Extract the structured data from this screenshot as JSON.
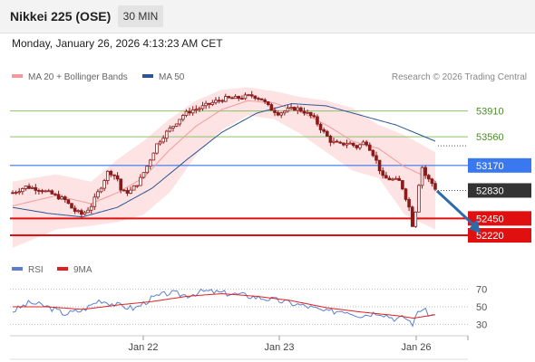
{
  "header": {
    "title": "Nikkei 225 (OSE)",
    "timeframe": "30 MIN",
    "datetime": "Monday, January 26, 2026 4:13:23 AM CET"
  },
  "legend": {
    "ma20_label": "MA 20 + Bollinger Bands",
    "ma50_label": "MA 50",
    "credit": "Research © 2026 Trading Central",
    "rsi_label": "RSI",
    "nine_ma_label": "9MA"
  },
  "colors": {
    "ma20": "#f29a9a",
    "ma50": "#2b5797",
    "bollinger_fill": "#fde3e3",
    "candle": "#8b1a1a",
    "resistance_green": "#8dc26b",
    "level_blue": "#3a78f0",
    "support_red": "#e01010",
    "current_box": "#333333",
    "arrow": "#2e6aa8",
    "rsi": "#5b7fd0",
    "rsi_ma": "#e02020"
  },
  "chart_data": [
    {
      "type": "candlestick",
      "title": "Nikkei 225 (OSE) 30 MIN",
      "x_ticks": [
        "Jan 22",
        "Jan 23",
        "Jan 26"
      ],
      "ylim": [
        51950,
        54250
      ],
      "price_path": [
        {
          "t": 0,
          "p": 52800
        },
        {
          "t": 3,
          "p": 52880
        },
        {
          "t": 6,
          "p": 52850
        },
        {
          "t": 9,
          "p": 52780
        },
        {
          "t": 12,
          "p": 52700
        },
        {
          "t": 14,
          "p": 52560
        },
        {
          "t": 16,
          "p": 52500
        },
        {
          "t": 18,
          "p": 52620
        },
        {
          "t": 20,
          "p": 52850
        },
        {
          "t": 22,
          "p": 53100
        },
        {
          "t": 24,
          "p": 53000
        },
        {
          "t": 25,
          "p": 52800
        },
        {
          "t": 27,
          "p": 52820
        },
        {
          "t": 29,
          "p": 52950
        },
        {
          "t": 31,
          "p": 53180
        },
        {
          "t": 33,
          "p": 53450
        },
        {
          "t": 35,
          "p": 53600
        },
        {
          "t": 37,
          "p": 53720
        },
        {
          "t": 39,
          "p": 53850
        },
        {
          "t": 41,
          "p": 53920
        },
        {
          "t": 43,
          "p": 53950
        },
        {
          "t": 45,
          "p": 54000
        },
        {
          "t": 47,
          "p": 54050
        },
        {
          "t": 49,
          "p": 54080
        },
        {
          "t": 51,
          "p": 54080
        },
        {
          "t": 53,
          "p": 54100
        },
        {
          "t": 55,
          "p": 54120
        },
        {
          "t": 57,
          "p": 54080
        },
        {
          "t": 59,
          "p": 53950
        },
        {
          "t": 61,
          "p": 53880
        },
        {
          "t": 63,
          "p": 53920
        },
        {
          "t": 65,
          "p": 53950
        },
        {
          "t": 67,
          "p": 53900
        },
        {
          "t": 69,
          "p": 53820
        },
        {
          "t": 71,
          "p": 53650
        },
        {
          "t": 73,
          "p": 53500
        },
        {
          "t": 75,
          "p": 53450
        },
        {
          "t": 77,
          "p": 53480
        },
        {
          "t": 79,
          "p": 53420
        },
        {
          "t": 81,
          "p": 53500
        },
        {
          "t": 83,
          "p": 53300
        },
        {
          "t": 85,
          "p": 53000
        },
        {
          "t": 87,
          "p": 52980
        },
        {
          "t": 89,
          "p": 52950
        },
        {
          "t": 91,
          "p": 52600
        },
        {
          "t": 92,
          "p": 52280
        },
        {
          "t": 93,
          "p": 52850
        },
        {
          "t": 94,
          "p": 53150
        },
        {
          "t": 95,
          "p": 53000
        },
        {
          "t": 96,
          "p": 52950
        },
        {
          "t": 97,
          "p": 52860
        }
      ],
      "ma20": [
        {
          "t": 0,
          "p": 52620
        },
        {
          "t": 10,
          "p": 52760
        },
        {
          "t": 18,
          "p": 52650
        },
        {
          "t": 24,
          "p": 52800
        },
        {
          "t": 30,
          "p": 53000
        },
        {
          "t": 36,
          "p": 53380
        },
        {
          "t": 42,
          "p": 53700
        },
        {
          "t": 48,
          "p": 53930
        },
        {
          "t": 54,
          "p": 54050
        },
        {
          "t": 60,
          "p": 54020
        },
        {
          "t": 66,
          "p": 53900
        },
        {
          "t": 72,
          "p": 53720
        },
        {
          "t": 78,
          "p": 53500
        },
        {
          "t": 84,
          "p": 53400
        },
        {
          "t": 90,
          "p": 53150
        },
        {
          "t": 97,
          "p": 52960
        }
      ],
      "bb_upper": [
        {
          "t": 0,
          "p": 52950
        },
        {
          "t": 10,
          "p": 53050
        },
        {
          "t": 18,
          "p": 52950
        },
        {
          "t": 24,
          "p": 53250
        },
        {
          "t": 30,
          "p": 53500
        },
        {
          "t": 36,
          "p": 53800
        },
        {
          "t": 42,
          "p": 54050
        },
        {
          "t": 48,
          "p": 54200
        },
        {
          "t": 54,
          "p": 54230
        },
        {
          "t": 60,
          "p": 54180
        },
        {
          "t": 66,
          "p": 54100
        },
        {
          "t": 72,
          "p": 54050
        },
        {
          "t": 78,
          "p": 53950
        },
        {
          "t": 84,
          "p": 53720
        },
        {
          "t": 90,
          "p": 53580
        },
        {
          "t": 97,
          "p": 53350
        }
      ],
      "bb_lower": [
        {
          "t": 0,
          "p": 52050
        },
        {
          "t": 10,
          "p": 52300
        },
        {
          "t": 18,
          "p": 52350
        },
        {
          "t": 24,
          "p": 52400
        },
        {
          "t": 30,
          "p": 52500
        },
        {
          "t": 36,
          "p": 52800
        },
        {
          "t": 42,
          "p": 53300
        },
        {
          "t": 48,
          "p": 53650
        },
        {
          "t": 54,
          "p": 53850
        },
        {
          "t": 60,
          "p": 53800
        },
        {
          "t": 66,
          "p": 53600
        },
        {
          "t": 72,
          "p": 53350
        },
        {
          "t": 78,
          "p": 53100
        },
        {
          "t": 84,
          "p": 53000
        },
        {
          "t": 90,
          "p": 52500
        },
        {
          "t": 97,
          "p": 52300
        }
      ],
      "ma50": [
        {
          "t": 0,
          "p": 52600
        },
        {
          "t": 8,
          "p": 52520
        },
        {
          "t": 16,
          "p": 52470
        },
        {
          "t": 24,
          "p": 52600
        },
        {
          "t": 32,
          "p": 52860
        },
        {
          "t": 40,
          "p": 53250
        },
        {
          "t": 48,
          "p": 53620
        },
        {
          "t": 56,
          "p": 53880
        },
        {
          "t": 64,
          "p": 54010
        },
        {
          "t": 72,
          "p": 53980
        },
        {
          "t": 80,
          "p": 53850
        },
        {
          "t": 88,
          "p": 53720
        },
        {
          "t": 97,
          "p": 53500
        }
      ],
      "levels": [
        {
          "value": 53910,
          "label": "53910",
          "kind": "resistance"
        },
        {
          "value": 53560,
          "label": "53560",
          "kind": "resistance"
        },
        {
          "value": 53170,
          "label": "53170",
          "kind": "pivot"
        },
        {
          "value": 52830,
          "label": "52830",
          "kind": "current"
        },
        {
          "value": 52450,
          "label": "52450",
          "kind": "support"
        },
        {
          "value": 52220,
          "label": "52220",
          "kind": "support"
        }
      ],
      "forecast_arrow": {
        "from_t": 97,
        "from_p": 52860,
        "to_t": 107,
        "to_p": 52220
      }
    },
    {
      "type": "line",
      "title": "RSI",
      "ylim": [
        20,
        80
      ],
      "y_ticks": [
        70,
        50,
        30
      ],
      "series": [
        {
          "name": "RSI",
          "points": [
            {
              "t": 0,
              "v": 45
            },
            {
              "t": 4,
              "v": 55
            },
            {
              "t": 8,
              "v": 50
            },
            {
              "t": 12,
              "v": 42
            },
            {
              "t": 16,
              "v": 46
            },
            {
              "t": 20,
              "v": 58
            },
            {
              "t": 24,
              "v": 52
            },
            {
              "t": 28,
              "v": 48
            },
            {
              "t": 32,
              "v": 60
            },
            {
              "t": 36,
              "v": 66
            },
            {
              "t": 40,
              "v": 63
            },
            {
              "t": 44,
              "v": 68
            },
            {
              "t": 48,
              "v": 66
            },
            {
              "t": 52,
              "v": 64
            },
            {
              "t": 56,
              "v": 61
            },
            {
              "t": 60,
              "v": 58
            },
            {
              "t": 64,
              "v": 54
            },
            {
              "t": 68,
              "v": 50
            },
            {
              "t": 72,
              "v": 44
            },
            {
              "t": 76,
              "v": 46
            },
            {
              "t": 80,
              "v": 40
            },
            {
              "t": 84,
              "v": 44
            },
            {
              "t": 88,
              "v": 36
            },
            {
              "t": 90,
              "v": 38
            },
            {
              "t": 92,
              "v": 30
            },
            {
              "t": 93,
              "v": 45
            },
            {
              "t": 94,
              "v": 48
            },
            {
              "t": 96,
              "v": 40
            },
            {
              "t": 97,
              "v": 41
            }
          ]
        },
        {
          "name": "9MA",
          "points": [
            {
              "t": 0,
              "v": 50
            },
            {
              "t": 8,
              "v": 50
            },
            {
              "t": 16,
              "v": 47
            },
            {
              "t": 24,
              "v": 52
            },
            {
              "t": 32,
              "v": 56
            },
            {
              "t": 40,
              "v": 62
            },
            {
              "t": 48,
              "v": 65
            },
            {
              "t": 56,
              "v": 62
            },
            {
              "t": 64,
              "v": 57
            },
            {
              "t": 72,
              "v": 49
            },
            {
              "t": 80,
              "v": 44
            },
            {
              "t": 88,
              "v": 40
            },
            {
              "t": 92,
              "v": 37
            },
            {
              "t": 97,
              "v": 41
            }
          ]
        }
      ]
    }
  ]
}
